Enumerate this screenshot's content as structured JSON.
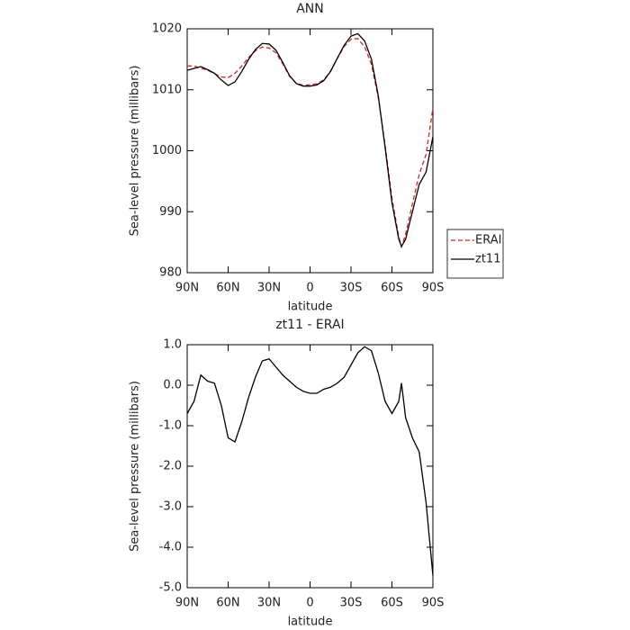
{
  "chart_data": [
    {
      "type": "line",
      "title": "ANN",
      "x_label": "latitude",
      "y_label": "Sea-level pressure (millibars)",
      "x": [
        90,
        85,
        80,
        75,
        70,
        65,
        60,
        55,
        50,
        45,
        40,
        35,
        30,
        25,
        20,
        15,
        10,
        5,
        0,
        -5,
        -10,
        -15,
        -20,
        -25,
        -30,
        -35,
        -40,
        -45,
        -50,
        -55,
        -60,
        -65,
        -67,
        -70,
        -75,
        -80,
        -85,
        -90
      ],
      "series": [
        {
          "name": "ERAI",
          "color": "#dd2222",
          "line_style": "dashed",
          "values": [
            1013.9,
            1013.9,
            1013.55,
            1013.2,
            1012.65,
            1012.1,
            1012.0,
            1012.7,
            1013.9,
            1015.3,
            1016.4,
            1017.0,
            1016.85,
            1016.05,
            1014.25,
            1012.2,
            1011.05,
            1010.75,
            1010.8,
            1011.0,
            1011.6,
            1013.05,
            1015.15,
            1017.1,
            1018.3,
            1018.4,
            1017.05,
            1014.15,
            1008.7,
            1000.9,
            992.2,
            985.9,
            984.25,
            986.3,
            991.3,
            996.15,
            999.4,
            1007.0
          ]
        },
        {
          "name": "zt11",
          "color": "#000000",
          "line_style": "solid",
          "values": [
            1013.2,
            1013.5,
            1013.8,
            1013.3,
            1012.7,
            1011.6,
            1010.7,
            1011.3,
            1013.0,
            1015.0,
            1016.6,
            1017.6,
            1017.5,
            1016.5,
            1014.5,
            1012.3,
            1011.0,
            1010.6,
            1010.6,
            1010.8,
            1011.5,
            1013.0,
            1015.2,
            1017.3,
            1018.8,
            1019.2,
            1018.0,
            1015.0,
            1009.0,
            1000.5,
            991.5,
            985.5,
            984.3,
            985.5,
            990.0,
            994.5,
            996.5,
            1002.3
          ]
        }
      ],
      "xlim": [
        90,
        -90
      ],
      "xticks": [
        {
          "value": 90,
          "label": "90N"
        },
        {
          "value": 60,
          "label": "60N"
        },
        {
          "value": 30,
          "label": "30N"
        },
        0,
        {
          "value": -30,
          "label": "30S"
        },
        {
          "value": -60,
          "label": "60S"
        },
        {
          "value": -90,
          "label": "90S"
        }
      ],
      "ylim": [
        980,
        1020
      ],
      "yticks": [
        980,
        990,
        1000,
        1010,
        1020
      ],
      "legend_position": "right"
    },
    {
      "type": "line",
      "title": "zt11 - ERAI",
      "x_label": "latitude",
      "y_label": "Sea-level pressure (millibars)",
      "x": [
        90,
        85,
        80,
        75,
        70,
        65,
        60,
        55,
        50,
        45,
        40,
        35,
        30,
        25,
        20,
        15,
        10,
        5,
        0,
        -5,
        -10,
        -15,
        -20,
        -25,
        -30,
        -35,
        -40,
        -45,
        -50,
        -55,
        -60,
        -65,
        -67,
        -70,
        -75,
        -80,
        -85,
        -90
      ],
      "series": [
        {
          "color": "#000000",
          "line_style": "solid",
          "values": [
            -0.7,
            -0.4,
            0.25,
            0.1,
            0.05,
            -0.5,
            -1.3,
            -1.4,
            -0.9,
            -0.3,
            0.2,
            0.6,
            0.65,
            0.45,
            0.25,
            0.1,
            -0.05,
            -0.15,
            -0.2,
            -0.2,
            -0.1,
            -0.05,
            0.05,
            0.2,
            0.5,
            0.8,
            0.95,
            0.85,
            0.3,
            -0.4,
            -0.7,
            -0.4,
            0.05,
            -0.8,
            -1.3,
            -1.65,
            -2.9,
            -4.7
          ]
        }
      ],
      "xlim": [
        90,
        -90
      ],
      "xticks": [
        {
          "value": 90,
          "label": "90N"
        },
        {
          "value": 60,
          "label": "60N"
        },
        {
          "value": 30,
          "label": "30N"
        },
        0,
        {
          "value": -30,
          "label": "30S"
        },
        {
          "value": -60,
          "label": "60S"
        },
        {
          "value": -90,
          "label": "90S"
        }
      ],
      "ylim": [
        -5,
        1
      ],
      "yticks": [
        {
          "value": -5,
          "label": "-5.0"
        },
        {
          "value": -4,
          "label": "-4.0"
        },
        {
          "value": -3,
          "label": "-3.0"
        },
        {
          "value": -2,
          "label": "-2.0"
        },
        {
          "value": -1,
          "label": "-1.0"
        },
        {
          "value": 0,
          "label": "0.0"
        },
        {
          "value": 1,
          "label": "1.0"
        }
      ]
    }
  ]
}
